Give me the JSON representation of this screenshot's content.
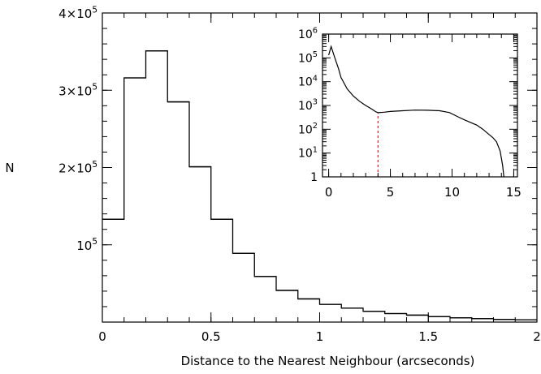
{
  "chart_data": [
    {
      "type": "histogram",
      "xlabel": "Distance to the Nearest Neighbour (arcseconds)",
      "ylabel": "N",
      "xlim": [
        0,
        2
      ],
      "ylim": [
        0,
        400000
      ],
      "x_ticks": [
        {
          "value": 0,
          "label": "0"
        },
        {
          "value": 0.5,
          "label": "0.5"
        },
        {
          "value": 1,
          "label": "1"
        },
        {
          "value": 1.5,
          "label": "1.5"
        },
        {
          "value": 2,
          "label": "2"
        }
      ],
      "y_ticks": [
        {
          "value": 100000,
          "mant": "10",
          "exp": "5"
        },
        {
          "value": 200000,
          "mant": "2×10",
          "exp": "5"
        },
        {
          "value": 300000,
          "mant": "3×10",
          "exp": "5"
        },
        {
          "value": 400000,
          "mant": "4×10",
          "exp": "5"
        }
      ],
      "bin_edges": [
        0,
        0.1,
        0.2,
        0.3,
        0.4,
        0.5,
        0.6,
        0.7,
        0.8,
        0.9,
        1.0,
        1.1,
        1.2,
        1.3,
        1.4,
        1.5,
        1.6,
        1.7,
        1.8,
        1.9,
        2.0
      ],
      "values": [
        133000,
        316000,
        351000,
        285000,
        201000,
        133000,
        89000,
        59000,
        41000,
        30000,
        23000,
        18000,
        14000,
        11000,
        9000,
        7000,
        5500,
        4500,
        3500,
        3000
      ]
    },
    {
      "type": "line",
      "inset": true,
      "yscale": "log",
      "xlim": [
        -0.5,
        15.3
      ],
      "ylim": [
        1,
        1000000
      ],
      "x_ticks": [
        {
          "value": 0,
          "label": "0"
        },
        {
          "value": 5,
          "label": "5"
        },
        {
          "value": 10,
          "label": "10"
        },
        {
          "value": 15,
          "label": "15"
        }
      ],
      "y_ticks": [
        {
          "value": 1,
          "mant": "1",
          "exp": ""
        },
        {
          "value": 10,
          "mant": "10",
          "exp": "1"
        },
        {
          "value": 100,
          "mant": "10",
          "exp": "2"
        },
        {
          "value": 1000,
          "mant": "10",
          "exp": "3"
        },
        {
          "value": 10000,
          "mant": "10",
          "exp": "4"
        },
        {
          "value": 100000,
          "mant": "10",
          "exp": "5"
        },
        {
          "value": 1000000,
          "mant": "10",
          "exp": "6"
        }
      ],
      "x": [
        0.0,
        0.2,
        0.5,
        0.8,
        1.0,
        1.5,
        2.0,
        2.5,
        3.0,
        3.5,
        3.8,
        4.0,
        4.5,
        5.0,
        6.0,
        7.0,
        8.0,
        9.0,
        9.8,
        10.5,
        11.0,
        12.0,
        12.5,
        13.0,
        13.3,
        13.6,
        13.9,
        14.1,
        14.2
      ],
      "y": [
        130000,
        300000,
        100000,
        35000,
        15000,
        5000,
        2500,
        1500,
        1000,
        700,
        550,
        500,
        520,
        560,
        600,
        640,
        630,
        600,
        500,
        330,
        250,
        150,
        100,
        60,
        45,
        30,
        12,
        3,
        1
      ],
      "reference_line": {
        "x": 4.0,
        "color": "#e8202a"
      }
    }
  ]
}
